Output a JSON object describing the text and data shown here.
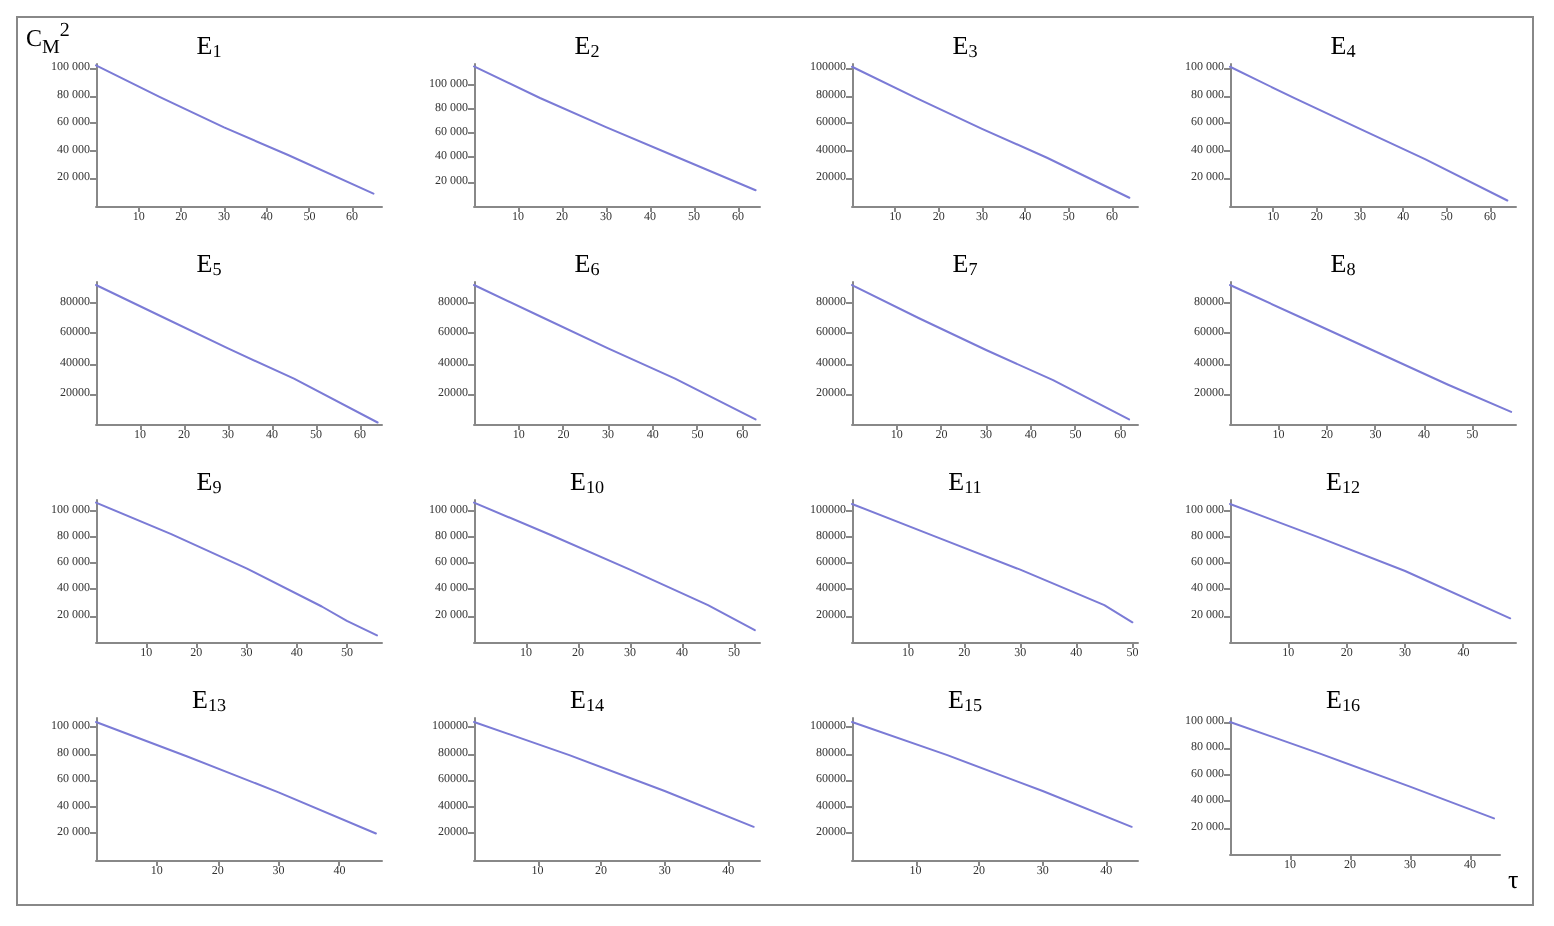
{
  "chart_data": [
    {
      "type": "line",
      "title": "E$_{1}$",
      "ylabel": "C$_{M}$$^{2}$",
      "x": [
        0,
        15,
        30,
        45,
        65
      ],
      "series": [
        {
          "color": "#7b7bd6",
          "values": [
            102000,
            79000,
            57000,
            37000,
            9000
          ]
        }
      ],
      "xlim": [
        0,
        67
      ],
      "ylim": [
        0,
        103000
      ],
      "xticks": [
        10,
        20,
        30,
        40,
        50,
        60
      ],
      "yticks": [
        {
          "value": 20000,
          "label": "20 000"
        },
        {
          "value": 40000,
          "label": "40 000"
        },
        {
          "value": 60000,
          "label": "60 000"
        },
        {
          "value": 80000,
          "label": "80 000"
        },
        {
          "value": 100000,
          "label": "100 000"
        }
      ],
      "grid": false,
      "marker": "none",
      "line_style": "solid"
    },
    {
      "type": "line",
      "title": "E$_{2}$",
      "x": [
        0,
        15,
        30,
        45,
        64
      ],
      "series": [
        {
          "color": "#7b7bd6",
          "values": [
            115000,
            89000,
            65000,
            42000,
            13000
          ]
        }
      ],
      "xlim": [
        0,
        65
      ],
      "ylim": [
        0,
        117000
      ],
      "xticks": [
        10,
        20,
        30,
        40,
        50,
        60
      ],
      "yticks": [
        {
          "value": 20000,
          "label": "20 000"
        },
        {
          "value": 40000,
          "label": "40 000"
        },
        {
          "value": 60000,
          "label": "60 000"
        },
        {
          "value": 80000,
          "label": "80 000"
        },
        {
          "value": 100000,
          "label": "100 000"
        }
      ],
      "grid": false,
      "marker": "none",
      "line_style": "solid"
    },
    {
      "type": "line",
      "title": "E$_{3}$",
      "x": [
        0,
        15,
        30,
        45,
        64
      ],
      "series": [
        {
          "color": "#7b7bd6",
          "values": [
            101000,
            78000,
            56000,
            35000,
            6000
          ]
        }
      ],
      "xlim": [
        0,
        66
      ],
      "ylim": [
        0,
        103000
      ],
      "xticks": [
        10,
        20,
        30,
        40,
        50,
        60
      ],
      "yticks": [
        {
          "value": 20000,
          "label": "20000"
        },
        {
          "value": 40000,
          "label": "40000"
        },
        {
          "value": 60000,
          "label": "60000"
        },
        {
          "value": 80000,
          "label": "80000"
        },
        {
          "value": 100000,
          "label": "100000"
        }
      ],
      "grid": false,
      "marker": "none",
      "line_style": "solid"
    },
    {
      "type": "line",
      "title": "E$_{4}$",
      "x": [
        0,
        15,
        30,
        45,
        64
      ],
      "series": [
        {
          "color": "#7b7bd6",
          "values": [
            101000,
            78000,
            56000,
            34000,
            4000
          ]
        }
      ],
      "xlim": [
        0,
        66
      ],
      "ylim": [
        0,
        103000
      ],
      "xticks": [
        10,
        20,
        30,
        40,
        50,
        60
      ],
      "yticks": [
        {
          "value": 20000,
          "label": "20 000"
        },
        {
          "value": 40000,
          "label": "40 000"
        },
        {
          "value": 60000,
          "label": "60 000"
        },
        {
          "value": 80000,
          "label": "80 000"
        },
        {
          "value": 100000,
          "label": "100 000"
        }
      ],
      "grid": false,
      "marker": "none",
      "line_style": "solid"
    },
    {
      "type": "line",
      "title": "E$_{5}$",
      "x": [
        0,
        15,
        30,
        45,
        64
      ],
      "series": [
        {
          "color": "#7b7bd6",
          "values": [
            92000,
            71000,
            50000,
            30000,
            1000
          ]
        }
      ],
      "xlim": [
        0,
        65
      ],
      "ylim": [
        0,
        94000
      ],
      "xticks": [
        10,
        20,
        30,
        40,
        50,
        60
      ],
      "yticks": [
        {
          "value": 20000,
          "label": "20000"
        },
        {
          "value": 40000,
          "label": "40000"
        },
        {
          "value": 60000,
          "label": "60000"
        },
        {
          "value": 80000,
          "label": "80000"
        }
      ],
      "grid": false,
      "marker": "none",
      "line_style": "solid"
    },
    {
      "type": "line",
      "title": "E$_{6}$",
      "x": [
        0,
        15,
        30,
        45,
        63
      ],
      "series": [
        {
          "color": "#7b7bd6",
          "values": [
            92000,
            71000,
            50000,
            30000,
            3000
          ]
        }
      ],
      "xlim": [
        0,
        64
      ],
      "ylim": [
        0,
        94000
      ],
      "xticks": [
        10,
        20,
        30,
        40,
        50,
        60
      ],
      "yticks": [
        {
          "value": 20000,
          "label": "20000"
        },
        {
          "value": 40000,
          "label": "40000"
        },
        {
          "value": 60000,
          "label": "60000"
        },
        {
          "value": 80000,
          "label": "80000"
        }
      ],
      "grid": false,
      "marker": "none",
      "line_style": "solid"
    },
    {
      "type": "line",
      "title": "E$_{7}$",
      "x": [
        0,
        15,
        30,
        45,
        62
      ],
      "series": [
        {
          "color": "#7b7bd6",
          "values": [
            92000,
            70000,
            49000,
            29000,
            3000
          ]
        }
      ],
      "xlim": [
        0,
        64
      ],
      "ylim": [
        0,
        94000
      ],
      "xticks": [
        10,
        20,
        30,
        40,
        50,
        60
      ],
      "yticks": [
        {
          "value": 20000,
          "label": "20000"
        },
        {
          "value": 40000,
          "label": "40000"
        },
        {
          "value": 60000,
          "label": "60000"
        },
        {
          "value": 80000,
          "label": "80000"
        }
      ],
      "grid": false,
      "marker": "none",
      "line_style": "solid"
    },
    {
      "type": "line",
      "title": "E$_{8}$",
      "x": [
        0,
        15,
        30,
        45,
        58
      ],
      "series": [
        {
          "color": "#7b7bd6",
          "values": [
            92000,
            70000,
            48000,
            26000,
            8000
          ]
        }
      ],
      "xlim": [
        0,
        59
      ],
      "ylim": [
        0,
        94000
      ],
      "xticks": [
        10,
        20,
        30,
        40,
        50
      ],
      "yticks": [
        {
          "value": 20000,
          "label": "20000"
        },
        {
          "value": 40000,
          "label": "40000"
        },
        {
          "value": 60000,
          "label": "60000"
        },
        {
          "value": 80000,
          "label": "80000"
        }
      ],
      "grid": false,
      "marker": "none",
      "line_style": "solid"
    },
    {
      "type": "line",
      "title": "E$_{9}$",
      "x": [
        0,
        15,
        30,
        45,
        50,
        56
      ],
      "series": [
        {
          "color": "#7b7bd6",
          "values": [
            106000,
            82000,
            56000,
            27000,
            16000,
            5000
          ]
        }
      ],
      "xlim": [
        0,
        57
      ],
      "ylim": [
        0,
        108000
      ],
      "xticks": [
        10,
        20,
        30,
        40,
        50
      ],
      "yticks": [
        {
          "value": 20000,
          "label": "20 000"
        },
        {
          "value": 40000,
          "label": "40 000"
        },
        {
          "value": 60000,
          "label": "60 000"
        },
        {
          "value": 80000,
          "label": "80 000"
        },
        {
          "value": 100000,
          "label": "100 000"
        }
      ],
      "grid": false,
      "marker": "none",
      "line_style": "solid"
    },
    {
      "type": "line",
      "title": "E$_{10}$",
      "x": [
        0,
        15,
        30,
        45,
        54
      ],
      "series": [
        {
          "color": "#7b7bd6",
          "values": [
            106000,
            81000,
            55000,
            28000,
            9000
          ]
        }
      ],
      "xlim": [
        0,
        55
      ],
      "ylim": [
        0,
        108000
      ],
      "xticks": [
        10,
        20,
        30,
        40,
        50
      ],
      "yticks": [
        {
          "value": 20000,
          "label": "20 000"
        },
        {
          "value": 40000,
          "label": "40 000"
        },
        {
          "value": 60000,
          "label": "60 000"
        },
        {
          "value": 80000,
          "label": "80 000"
        },
        {
          "value": 100000,
          "label": "100 000"
        }
      ],
      "grid": false,
      "marker": "none",
      "line_style": "solid"
    },
    {
      "type": "line",
      "title": "E$_{11}$",
      "x": [
        0,
        15,
        30,
        45,
        50
      ],
      "series": [
        {
          "color": "#7b7bd6",
          "values": [
            105000,
            80000,
            55000,
            28000,
            15000
          ]
        }
      ],
      "xlim": [
        0,
        51
      ],
      "ylim": [
        0,
        108000
      ],
      "xticks": [
        10,
        20,
        30,
        40,
        50
      ],
      "yticks": [
        {
          "value": 20000,
          "label": "20000"
        },
        {
          "value": 40000,
          "label": "40000"
        },
        {
          "value": 60000,
          "label": "60000"
        },
        {
          "value": 80000,
          "label": "80000"
        },
        {
          "value": 100000,
          "label": "100000"
        }
      ],
      "grid": false,
      "marker": "none",
      "line_style": "solid"
    },
    {
      "type": "line",
      "title": "E$_{12}$",
      "x": [
        0,
        15,
        30,
        48
      ],
      "series": [
        {
          "color": "#7b7bd6",
          "values": [
            105000,
            80000,
            54000,
            18000
          ]
        }
      ],
      "xlim": [
        0,
        49
      ],
      "ylim": [
        0,
        108000
      ],
      "xticks": [
        10,
        20,
        30,
        40
      ],
      "yticks": [
        {
          "value": 20000,
          "label": "20 000"
        },
        {
          "value": 40000,
          "label": "40 000"
        },
        {
          "value": 60000,
          "label": "60 000"
        },
        {
          "value": 80000,
          "label": "80 000"
        },
        {
          "value": 100000,
          "label": "100 000"
        }
      ],
      "grid": false,
      "marker": "none",
      "line_style": "solid"
    },
    {
      "type": "line",
      "title": "E$_{13}$",
      "x": [
        0,
        15,
        30,
        46
      ],
      "series": [
        {
          "color": "#7b7bd6",
          "values": [
            104000,
            78000,
            51000,
            20000
          ]
        }
      ],
      "xlim": [
        0,
        47
      ],
      "ylim": [
        0,
        107000
      ],
      "xticks": [
        10,
        20,
        30,
        40
      ],
      "yticks": [
        {
          "value": 20000,
          "label": "20 000"
        },
        {
          "value": 40000,
          "label": "40 000"
        },
        {
          "value": 60000,
          "label": "60 000"
        },
        {
          "value": 80000,
          "label": "80 000"
        },
        {
          "value": 100000,
          "label": "100 000"
        }
      ],
      "grid": false,
      "marker": "none",
      "line_style": "solid"
    },
    {
      "type": "line",
      "title": "E$_{14}$",
      "x": [
        0,
        15,
        30,
        44
      ],
      "series": [
        {
          "color": "#7b7bd6",
          "values": [
            104000,
            79000,
            52000,
            25000
          ]
        }
      ],
      "xlim": [
        0,
        45
      ],
      "ylim": [
        0,
        107000
      ],
      "xticks": [
        10,
        20,
        30,
        40
      ],
      "yticks": [
        {
          "value": 20000,
          "label": "20000"
        },
        {
          "value": 40000,
          "label": "40000"
        },
        {
          "value": 60000,
          "label": "60000"
        },
        {
          "value": 80000,
          "label": "80000"
        },
        {
          "value": 100000,
          "label": "100000"
        }
      ],
      "grid": false,
      "marker": "none",
      "line_style": "solid"
    },
    {
      "type": "line",
      "title": "E$_{15}$",
      "x": [
        0,
        15,
        30,
        44
      ],
      "series": [
        {
          "color": "#7b7bd6",
          "values": [
            104000,
            79000,
            52000,
            25000
          ]
        }
      ],
      "xlim": [
        0,
        45
      ],
      "ylim": [
        0,
        107000
      ],
      "xticks": [
        10,
        20,
        30,
        40
      ],
      "yticks": [
        {
          "value": 20000,
          "label": "20000"
        },
        {
          "value": 40000,
          "label": "40000"
        },
        {
          "value": 60000,
          "label": "60000"
        },
        {
          "value": 80000,
          "label": "80000"
        },
        {
          "value": 100000,
          "label": "100000"
        }
      ],
      "grid": false,
      "marker": "none",
      "line_style": "solid"
    },
    {
      "type": "line",
      "title": "E$_{16}$",
      "xlabel": "τ",
      "x": [
        0,
        15,
        30,
        44
      ],
      "series": [
        {
          "color": "#7b7bd6",
          "values": [
            100000,
            76000,
            51000,
            27000
          ]
        }
      ],
      "xlim": [
        0,
        45
      ],
      "ylim": [
        0,
        103000
      ],
      "xticks": [
        10,
        20,
        30,
        40
      ],
      "yticks": [
        {
          "value": 20000,
          "label": "20 000"
        },
        {
          "value": 40000,
          "label": "40 000"
        },
        {
          "value": 60000,
          "label": "60 000"
        },
        {
          "value": 80000,
          "label": "80 000"
        },
        {
          "value": 100000,
          "label": "100 000"
        }
      ],
      "grid": false,
      "marker": "none",
      "line_style": "solid"
    }
  ]
}
